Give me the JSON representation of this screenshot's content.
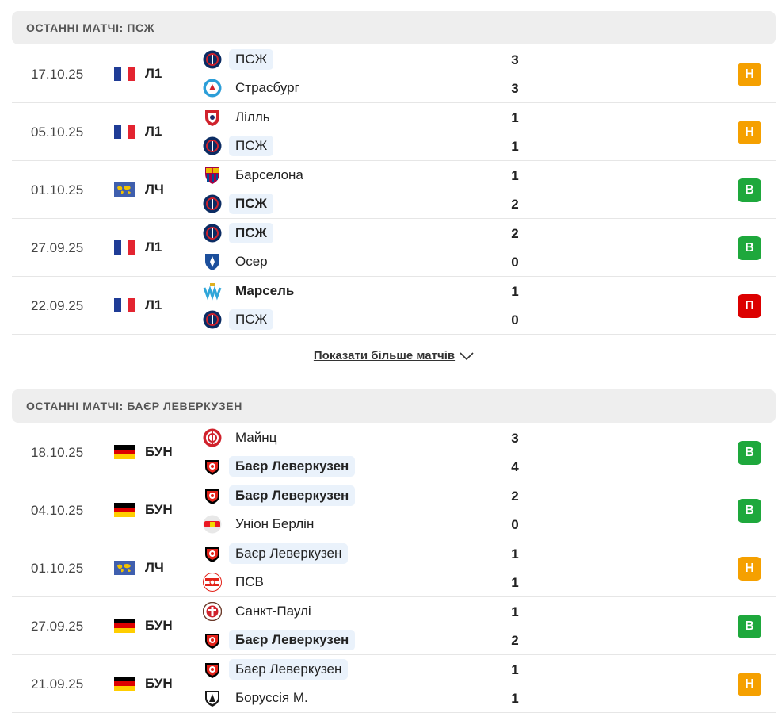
{
  "sections": [
    {
      "title": "ОСТАННІ МАТЧІ: ПСЖ",
      "matches": [
        {
          "date": "17.10.25",
          "flag": "fr",
          "league": "Л1",
          "home": {
            "name": "ПСЖ",
            "crest": "psg",
            "highlight": true,
            "bold": false
          },
          "home_score": "3",
          "away": {
            "name": "Страсбург",
            "crest": "strasbourg",
            "highlight": false,
            "bold": false
          },
          "away_score": "3",
          "result": "Н",
          "result_color": "#f5a000"
        },
        {
          "date": "05.10.25",
          "flag": "fr",
          "league": "Л1",
          "home": {
            "name": "Лілль",
            "crest": "lille",
            "highlight": false,
            "bold": false
          },
          "home_score": "1",
          "away": {
            "name": "ПСЖ",
            "crest": "psg",
            "highlight": true,
            "bold": false
          },
          "away_score": "1",
          "result": "Н",
          "result_color": "#f5a000"
        },
        {
          "date": "01.10.25",
          "flag": "world",
          "league": "ЛЧ",
          "home": {
            "name": "Барселона",
            "crest": "barcelona",
            "highlight": false,
            "bold": false
          },
          "home_score": "1",
          "away": {
            "name": "ПСЖ",
            "crest": "psg",
            "highlight": true,
            "bold": true
          },
          "away_score": "2",
          "result": "В",
          "result_color": "#1ea83c"
        },
        {
          "date": "27.09.25",
          "flag": "fr",
          "league": "Л1",
          "home": {
            "name": "ПСЖ",
            "crest": "psg",
            "highlight": true,
            "bold": true
          },
          "home_score": "2",
          "away": {
            "name": "Осер",
            "crest": "auxerre",
            "highlight": false,
            "bold": false
          },
          "away_score": "0",
          "result": "В",
          "result_color": "#1ea83c"
        },
        {
          "date": "22.09.25",
          "flag": "fr",
          "league": "Л1",
          "home": {
            "name": "Марсель",
            "crest": "marseille",
            "highlight": false,
            "bold": true
          },
          "home_score": "1",
          "away": {
            "name": "ПСЖ",
            "crest": "psg",
            "highlight": true,
            "bold": false
          },
          "away_score": "0",
          "result": "П",
          "result_color": "#dc0000"
        }
      ]
    },
    {
      "title": "ОСТАННІ МАТЧІ: БАЄР ЛЕВЕРКУЗЕН",
      "matches": [
        {
          "date": "18.10.25",
          "flag": "de",
          "league": "БУН",
          "home": {
            "name": "Майнц",
            "crest": "mainz",
            "highlight": false,
            "bold": false
          },
          "home_score": "3",
          "away": {
            "name": "Баєр Леверкузен",
            "crest": "leverkusen",
            "highlight": true,
            "bold": true
          },
          "away_score": "4",
          "result": "В",
          "result_color": "#1ea83c"
        },
        {
          "date": "04.10.25",
          "flag": "de",
          "league": "БУН",
          "home": {
            "name": "Баєр Леверкузен",
            "crest": "leverkusen",
            "highlight": true,
            "bold": true
          },
          "home_score": "2",
          "away": {
            "name": "Уніон Берлін",
            "crest": "union",
            "highlight": false,
            "bold": false
          },
          "away_score": "0",
          "result": "В",
          "result_color": "#1ea83c"
        },
        {
          "date": "01.10.25",
          "flag": "world",
          "league": "ЛЧ",
          "home": {
            "name": "Баєр Леверкузен",
            "crest": "leverkusen",
            "highlight": true,
            "bold": false
          },
          "home_score": "1",
          "away": {
            "name": "ПСВ",
            "crest": "psv",
            "highlight": false,
            "bold": false
          },
          "away_score": "1",
          "result": "Н",
          "result_color": "#f5a000"
        },
        {
          "date": "27.09.25",
          "flag": "de",
          "league": "БУН",
          "home": {
            "name": "Санкт-Паулі",
            "crest": "stpauli",
            "highlight": false,
            "bold": false
          },
          "home_score": "1",
          "away": {
            "name": "Баєр Леверкузен",
            "crest": "leverkusen",
            "highlight": true,
            "bold": true
          },
          "away_score": "2",
          "result": "В",
          "result_color": "#1ea83c"
        },
        {
          "date": "21.09.25",
          "flag": "de",
          "league": "БУН",
          "home": {
            "name": "Баєр Леверкузен",
            "crest": "leverkusen",
            "highlight": true,
            "bold": false
          },
          "home_score": "1",
          "away": {
            "name": "Боруссія М.",
            "crest": "gladbach",
            "highlight": false,
            "bold": false
          },
          "away_score": "1",
          "result": "Н",
          "result_color": "#f5a000"
        }
      ]
    }
  ],
  "show_more_label": "Показати більше матчів",
  "colors": {
    "header_bg": "#eeeeee",
    "team_highlight": "#eaf2fb"
  }
}
